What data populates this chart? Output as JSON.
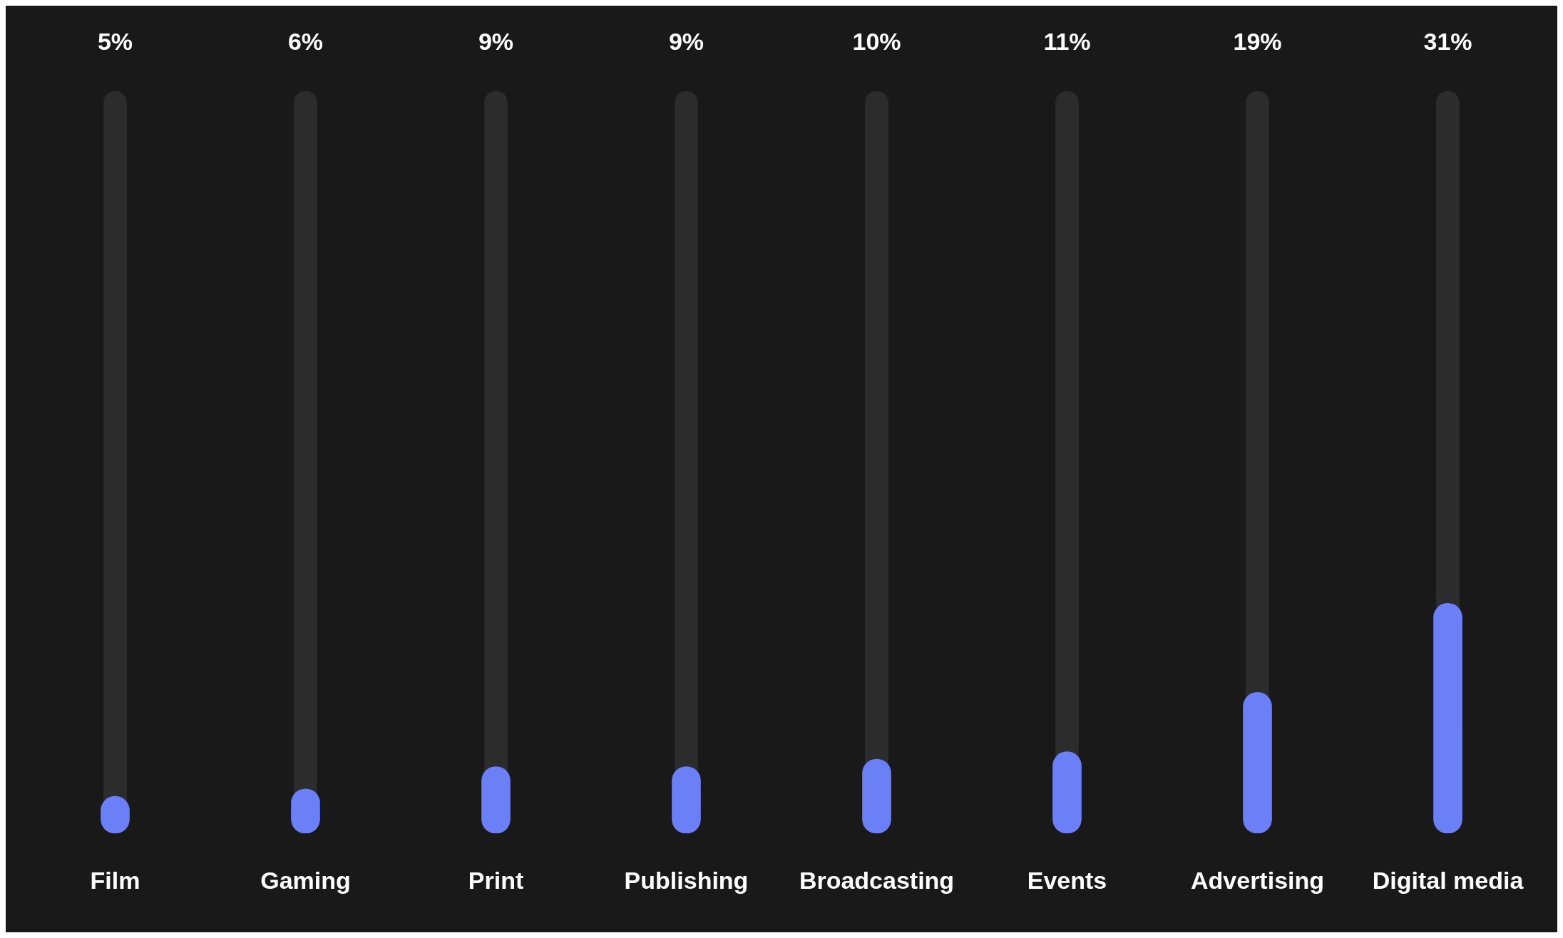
{
  "chart_data": {
    "type": "bar",
    "categories": [
      "Film",
      "Gaming",
      "Print",
      "Publishing",
      "Broadcasting",
      "Events",
      "Advertising",
      "Digital media"
    ],
    "series": [
      {
        "color": "#2c2c2c",
        "values": [
          100,
          100,
          100,
          100,
          100,
          100,
          100,
          100
        ]
      },
      {
        "color": "#6b7ff7",
        "values": [
          5,
          6,
          9,
          9,
          10,
          11,
          19,
          31
        ],
        "value_labels": [
          "5%",
          "6%",
          "9%",
          "9%",
          "10%",
          "11%",
          "19%",
          "31%"
        ]
      }
    ]
  }
}
